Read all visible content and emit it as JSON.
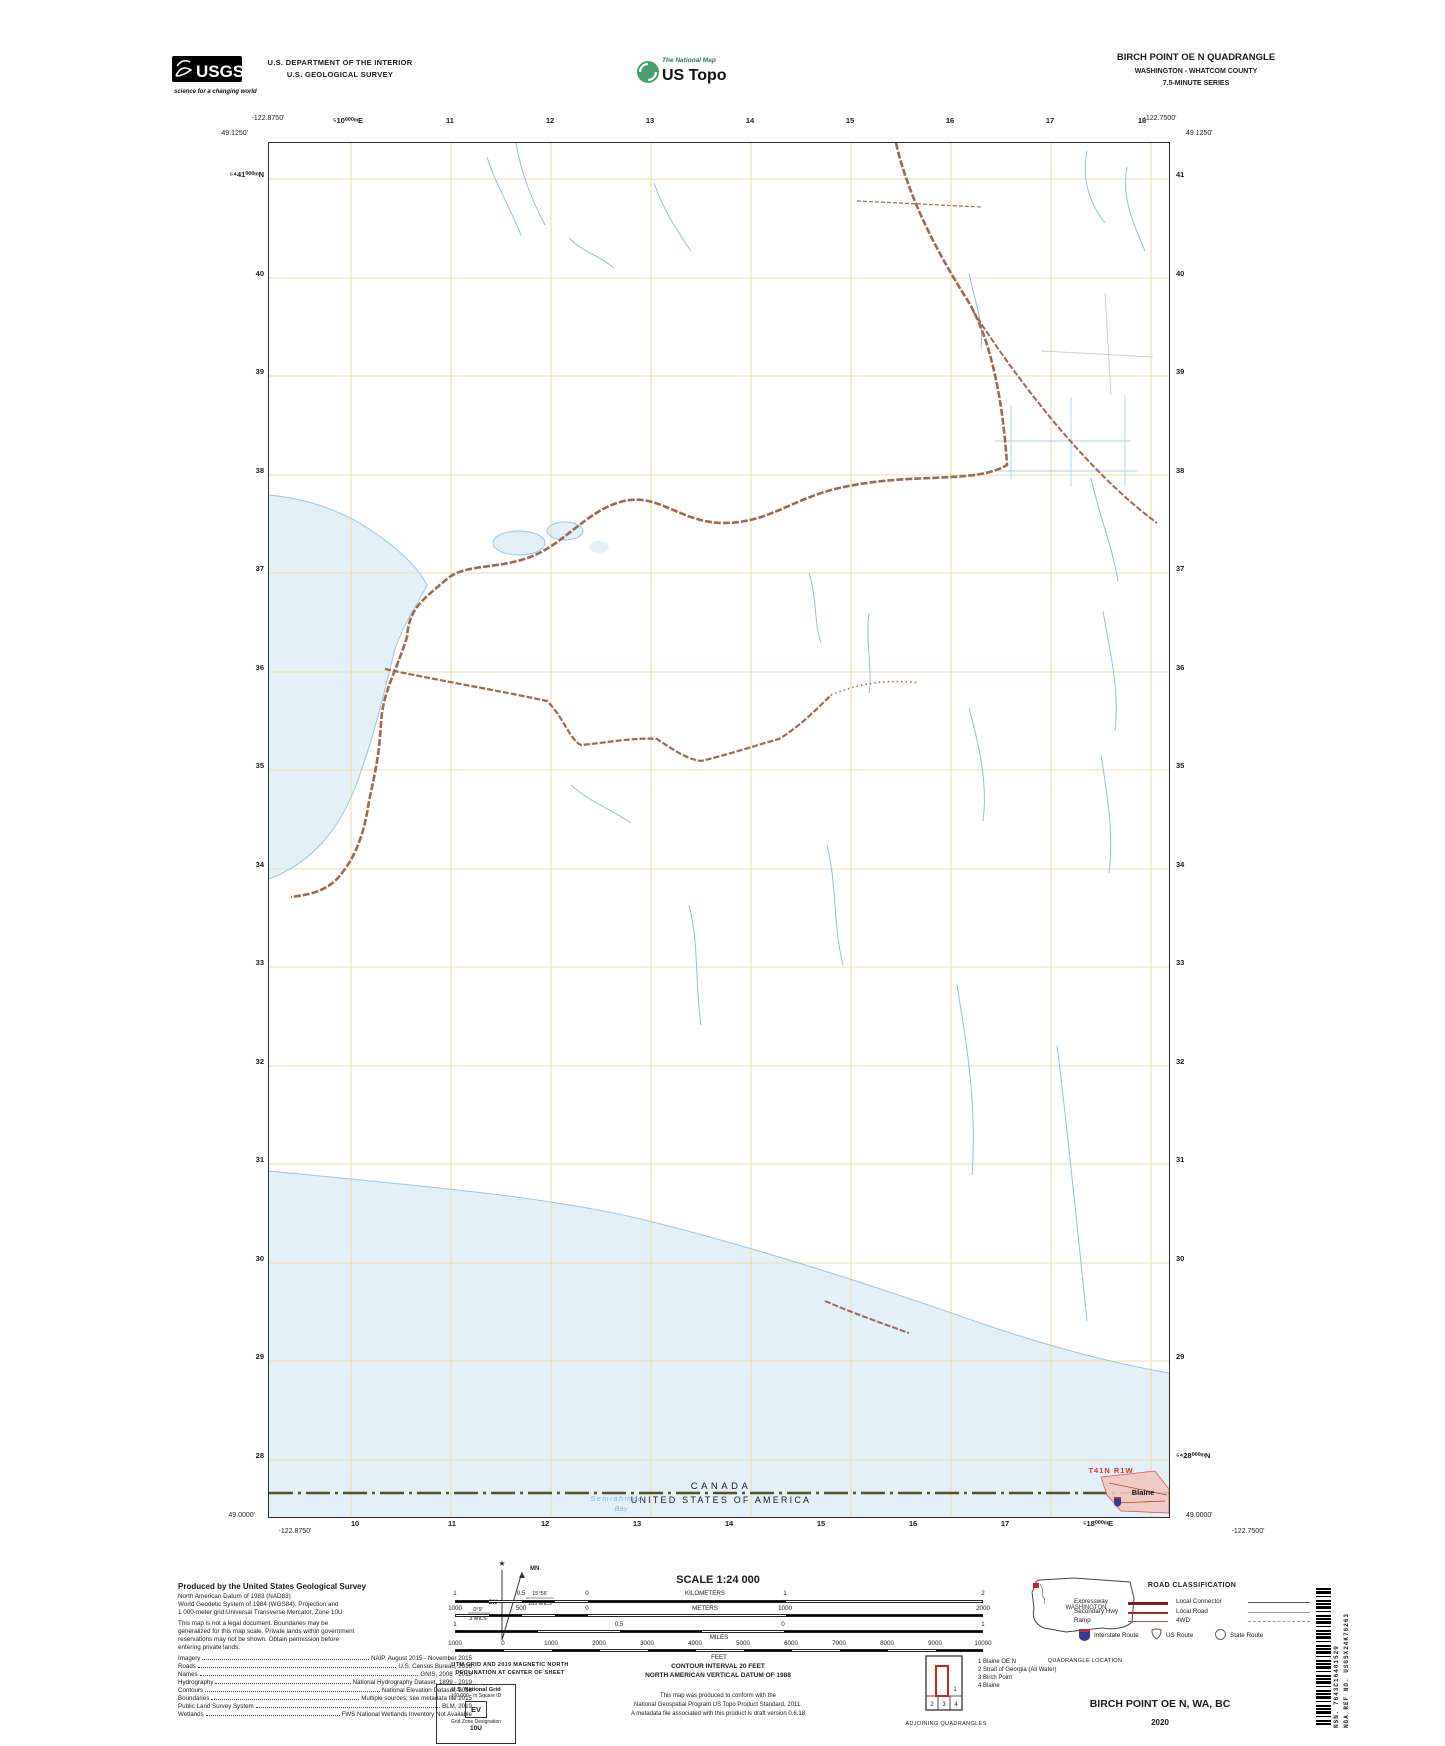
{
  "header": {
    "usgs": {
      "logo_text": "USGS",
      "tagline": "science for a changing world"
    },
    "department_line1": "U.S. DEPARTMENT OF THE INTERIOR",
    "department_line2": "U.S. GEOLOGICAL SURVEY",
    "national_map": "The National Map",
    "us_topo": "US Topo",
    "quad_title": "BIRCH POINT OE N QUADRANGLE",
    "quad_subtitle": "WASHINGTON - WHATCOM COUNTY",
    "quad_series": "7.5-MINUTE SERIES"
  },
  "map": {
    "corner_coords": {
      "top_left_lon": "-122.8750'",
      "top_left_lat": "49.1250'",
      "top_right_lon": "-122.7500'",
      "top_right_lat": "49.1250'",
      "bottom_left_lat": "49.0000'",
      "bottom_left_lon": "-122.8750'",
      "bottom_right_lat": "49.0000'",
      "bottom_right_lon": "-122.7500'"
    },
    "grid_labels_top": [
      "⁵10⁰⁰⁰ᵐE",
      "11",
      "12",
      "13",
      "14",
      "15",
      "16",
      "17",
      "18"
    ],
    "grid_labels_bottom": [
      "10",
      "11",
      "12",
      "13",
      "14",
      "15",
      "16",
      "17",
      "⁵18⁰⁰⁰ᵐE"
    ],
    "grid_labels_left": [
      "⁵⁴41⁰⁰⁰ᵐN",
      "40",
      "39",
      "38",
      "37",
      "36",
      "35",
      "34",
      "33",
      "32",
      "31",
      "30",
      "29",
      "28"
    ],
    "grid_labels_right": [
      "41",
      "40",
      "39",
      "38",
      "37",
      "36",
      "35",
      "34",
      "33",
      "32",
      "31",
      "30",
      "29",
      "⁵⁴28⁰⁰⁰ᵐN"
    ],
    "boundary_label_north": "CANADA",
    "boundary_label_south": "UNITED STATES OF AMERICA",
    "bay_label_line1": "Semiahmoo",
    "bay_label_line2": "Bay",
    "township_label": "T41N R1W",
    "city_label": "Blaine"
  },
  "footer": {
    "produced": {
      "title": "Produced by the United States Geological Survey",
      "datum_lines": [
        "North American Datum of 1983 (NAD83)",
        "World Geodetic System of 1984 (WGS84).  Projection and",
        "1 000-meter grid:Universal Transverse Mercator, Zone 10U"
      ],
      "disclaimer_lines": [
        "This map is not a legal document. Boundaries may be",
        "generalized for this map scale. Private lands within government",
        "reservations may not be shown. Obtain permission before",
        "entering private lands."
      ],
      "credits": [
        {
          "label": "Imagery",
          "value": "NAIP, August 2015 - November 2015"
        },
        {
          "label": "Roads",
          "value": "U.S. Census Bureau, 2016"
        },
        {
          "label": "Names",
          "value": "GNIS, 2008 - 2019"
        },
        {
          "label": "Hydrography",
          "value": "National Hydrography Dataset, 1899 - 2019"
        },
        {
          "label": "Contours",
          "value": "National Elevation Dataset, 2018"
        },
        {
          "label": "Boundaries",
          "value": "Multiple sources; see metadata file 2015"
        },
        {
          "label": "Public Land Survey System",
          "value": "BLM, 2019"
        },
        {
          "label": "Wetlands",
          "value": "FWS National Wetlands Inventory Not Available"
        }
      ]
    },
    "declination": {
      "mn_label": "MN",
      "gn_label": "GN",
      "gn_angle": "0°9'",
      "gn_mils": "3 MILS",
      "mn_angle": "15°56'",
      "mn_mils": "283 MILS",
      "caption_line1": "UTM GRID AND 2019 MAGNETIC NORTH",
      "caption_line2": "DECLINATION AT CENTER OF SHEET"
    },
    "usng": {
      "title": "U.S. National Grid",
      "subtitle": "100,000 - m Square ID",
      "square_id": "EV",
      "zone_label": "Grid Zone Designation",
      "zone": "10U"
    },
    "scale": {
      "title": "SCALE 1:24 000",
      "km_labels": [
        "1",
        "0.5",
        "0",
        "KILOMETERS",
        "1",
        "2"
      ],
      "m_labels": [
        "1000",
        "500",
        "0",
        "METERS",
        "1000",
        "2000"
      ],
      "mi_labels": [
        "1",
        "0.5",
        "0",
        "1"
      ],
      "mi_caption": "MILES",
      "ft_labels": [
        "1000",
        "0",
        "1000",
        "2000",
        "3000",
        "4000",
        "5000",
        "6000",
        "7000",
        "8000",
        "9000",
        "10000"
      ],
      "ft_caption": "FEET",
      "contour_line1": "CONTOUR INTERVAL 20 FEET",
      "contour_line2": "NORTH AMERICAN VERTICAL DATUM OF 1988",
      "conformance_lines": [
        "This map was produced to conform with the",
        "National Geospatial Program US Topo Product Standard, 2011.",
        "A metadata file associated with this product is draft version 0.6.18"
      ]
    },
    "location_inset": {
      "state_label": "WASHINGTON",
      "caption": "QUADRANGLE LOCATION"
    },
    "adjoining": {
      "caption": "ADJOINING QUADRANGLES",
      "cells": [
        "1",
        "2",
        "3",
        "4"
      ],
      "legend": [
        "1 Blaine OE N",
        "2 Strait of Georgia (All Water)",
        "3 Birch Point",
        "4 Blaine"
      ]
    },
    "road_classification": {
      "title": "ROAD CLASSIFICATION",
      "rows_left": [
        "Expressway",
        "Secondary Hwy",
        "Ramp"
      ],
      "rows_right": [
        "Local Connector",
        "Local Road",
        "4WD"
      ],
      "shields": [
        "Interstate Route",
        "US Route",
        "State Route"
      ]
    },
    "barcode": {
      "nsn": "NSN. 7643C16401529",
      "nga": "NGA REF NO. USGSX24K76263"
    },
    "sheet_title": "BIRCH POINT OE N,  WA, BC",
    "sheet_year": "2020"
  },
  "colors": {
    "water": "#e4f0f8",
    "water_line": "#9cc6dd",
    "grid": "#e9dfae",
    "rail_brown": "#9b6a50",
    "boundary": "#53502f",
    "red": "#d03030",
    "legend_road_red": "#8c2222",
    "shield_blue": "#2e3d96"
  }
}
